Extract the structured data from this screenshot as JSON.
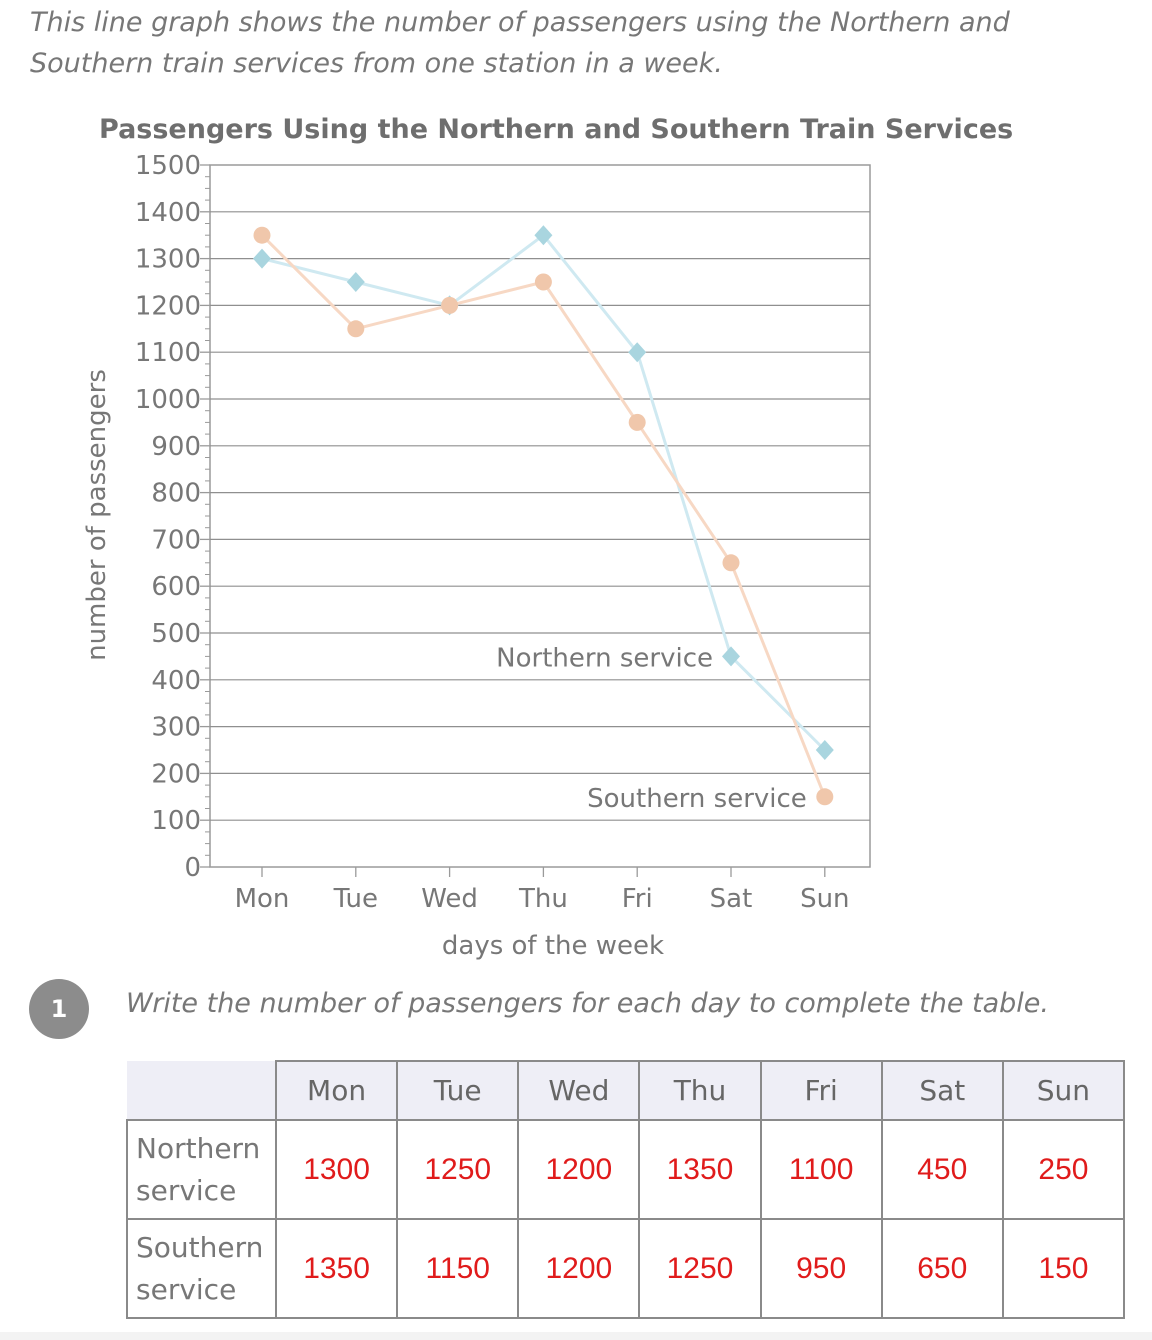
{
  "intro_text": "This line graph shows the number of passengers using the Northern and Southern train services from one station in a week.",
  "chart_data": {
    "type": "line",
    "title": "Passengers Using the Northern and Southern Train Services",
    "xlabel": "days of the week",
    "ylabel": "number of passengers",
    "categories": [
      "Mon",
      "Tue",
      "Wed",
      "Thu",
      "Fri",
      "Sat",
      "Sun"
    ],
    "ylim": [
      0,
      1500
    ],
    "yticks": [
      0,
      100,
      200,
      300,
      400,
      500,
      600,
      700,
      800,
      900,
      1000,
      1100,
      1200,
      1300,
      1400,
      1500
    ],
    "grid": true,
    "series": [
      {
        "name": "Northern service",
        "marker": "diamond",
        "color": "#a9d5df",
        "line_color": "#cfe9f1",
        "values": [
          1300,
          1250,
          1200,
          1350,
          1100,
          450,
          250
        ]
      },
      {
        "name": "Southern service",
        "marker": "circle",
        "color": "#f0c7ab",
        "line_color": "#f7d8c4",
        "values": [
          1350,
          1150,
          1200,
          1250,
          950,
          650,
          150
        ]
      }
    ]
  },
  "question": {
    "number": "1",
    "text": "Write the number of passengers for each day to complete the table."
  },
  "table": {
    "headers": [
      "Mon",
      "Tue",
      "Wed",
      "Thu",
      "Fri",
      "Sat",
      "Sun"
    ],
    "rows": [
      {
        "label": "Northern service",
        "values": [
          "1300",
          "1250",
          "1200",
          "1350",
          "1100",
          "450",
          "250"
        ]
      },
      {
        "label": "Southern service",
        "values": [
          "1350",
          "1150",
          "1200",
          "1250",
          "950",
          "650",
          "150"
        ]
      }
    ]
  }
}
